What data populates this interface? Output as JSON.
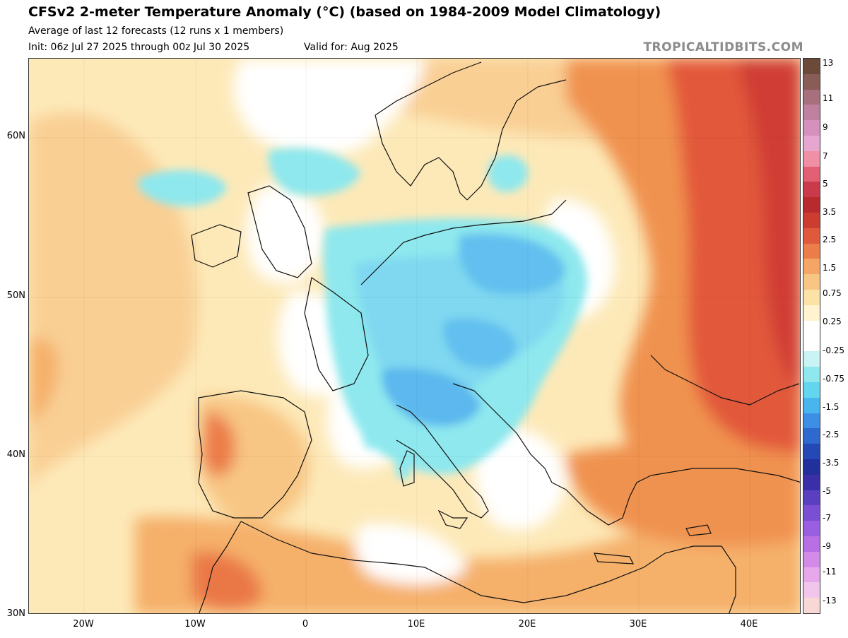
{
  "header": {
    "title": "CFSv2 2-meter Temperature Anomaly (°C) (based on 1984-2009 Model Climatology)",
    "subtitle": "Average of last 12 forecasts (12 runs x 1 members)",
    "init": "Init: 06z Jul 27 2025 through 00z Jul 30 2025",
    "valid": "Valid for: Aug 2025",
    "brand": "TROPICALTIDBITS.COM"
  },
  "axes": {
    "lat_labels": [
      "60N",
      "50N",
      "40N",
      "30N"
    ],
    "lon_labels": [
      "20W",
      "10W",
      "0",
      "10E",
      "20E",
      "30E",
      "40E"
    ]
  },
  "colorbar": {
    "labels": [
      "13",
      "11",
      "9",
      "7",
      "5",
      "3.5",
      "2.5",
      "1.5",
      "0.75",
      "0.25",
      "-0.25",
      "-0.75",
      "-1.5",
      "-2.5",
      "-3.5",
      "-5",
      "-7",
      "-9",
      "-11",
      "-13"
    ],
    "colors": [
      "#6b4a3a",
      "#8a5c57",
      "#a86f7c",
      "#c081a0",
      "#d690bd",
      "#e6a6d0",
      "#f08fa6",
      "#e25f74",
      "#c93a4a",
      "#b82a2e",
      "#cc3c30",
      "#df5a3c",
      "#ec7d4a",
      "#f5a565",
      "#f8c684",
      "#fbe3a8",
      "#fff4cf",
      "#ffffff",
      "#ffffff",
      "#c9f3f5",
      "#8ee8ee",
      "#62d6ef",
      "#48b5ef",
      "#3d8fe6",
      "#2f68cf",
      "#2448b5",
      "#21309b",
      "#3b2fa8",
      "#5a3fc0",
      "#7b4fd3",
      "#9a5fe0",
      "#b86fe6",
      "#d38ae8",
      "#e6a8ea",
      "#f2c6ec",
      "#f7d8d6"
    ]
  },
  "map": {
    "description_colors": {
      "ocean_neutral": "#fde9b8",
      "warm": "#f5b06a",
      "hot": "#e2583a",
      "cool": "#7fe3ee",
      "cooler": "#5cb8ee",
      "neutral": "#ffffff"
    }
  }
}
